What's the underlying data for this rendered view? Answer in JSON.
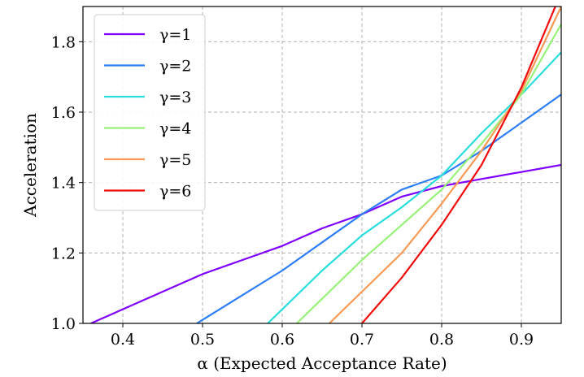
{
  "chart_data": {
    "type": "line",
    "xlabel": "α (Expected Acceptance Rate)",
    "ylabel": "Acceleration",
    "xlim": [
      0.35,
      0.95
    ],
    "ylim": [
      1.0,
      1.9
    ],
    "x_ticks": [
      "0.4",
      "0.5",
      "0.6",
      "0.7",
      "0.8",
      "0.9"
    ],
    "y_ticks": [
      "1.0",
      "1.2",
      "1.4",
      "1.6",
      "1.8"
    ],
    "grid": true,
    "legend_position": "upper-left",
    "x": [
      0.35,
      0.4,
      0.45,
      0.5,
      0.55,
      0.6,
      0.65,
      0.7,
      0.75,
      0.8,
      0.85,
      0.9,
      0.95
    ],
    "series": [
      {
        "name": "γ=1",
        "color": "#8000ff",
        "values": [
          null,
          1.04,
          1.09,
          1.14,
          1.18,
          1.22,
          1.27,
          1.31,
          1.36,
          1.39,
          1.41,
          1.43,
          1.45
        ]
      },
      {
        "name": "γ=2",
        "color": "#2c7ef7",
        "values": [
          null,
          null,
          null,
          1.01,
          1.08,
          1.15,
          1.23,
          1.31,
          1.38,
          1.42,
          1.49,
          1.57,
          1.65
        ]
      },
      {
        "name": "γ=3",
        "color": "#2adddd",
        "values": [
          null,
          null,
          null,
          null,
          null,
          1.04,
          1.15,
          1.25,
          1.33,
          1.42,
          1.54,
          1.65,
          1.77
        ]
      },
      {
        "name": "γ=4",
        "color": "#98f27a",
        "values": [
          null,
          null,
          null,
          null,
          null,
          null,
          1.07,
          1.18,
          1.28,
          1.38,
          1.51,
          1.65,
          1.85
        ]
      },
      {
        "name": "γ=5",
        "color": "#f79a55",
        "values": [
          null,
          null,
          null,
          null,
          null,
          null,
          null,
          1.09,
          1.2,
          1.34,
          1.49,
          1.66,
          1.9
        ]
      },
      {
        "name": "γ=6",
        "color": "#f20a0a",
        "values": [
          null,
          null,
          null,
          null,
          null,
          null,
          null,
          1.0,
          1.13,
          1.28,
          1.45,
          1.67,
          1.94
        ]
      }
    ]
  }
}
